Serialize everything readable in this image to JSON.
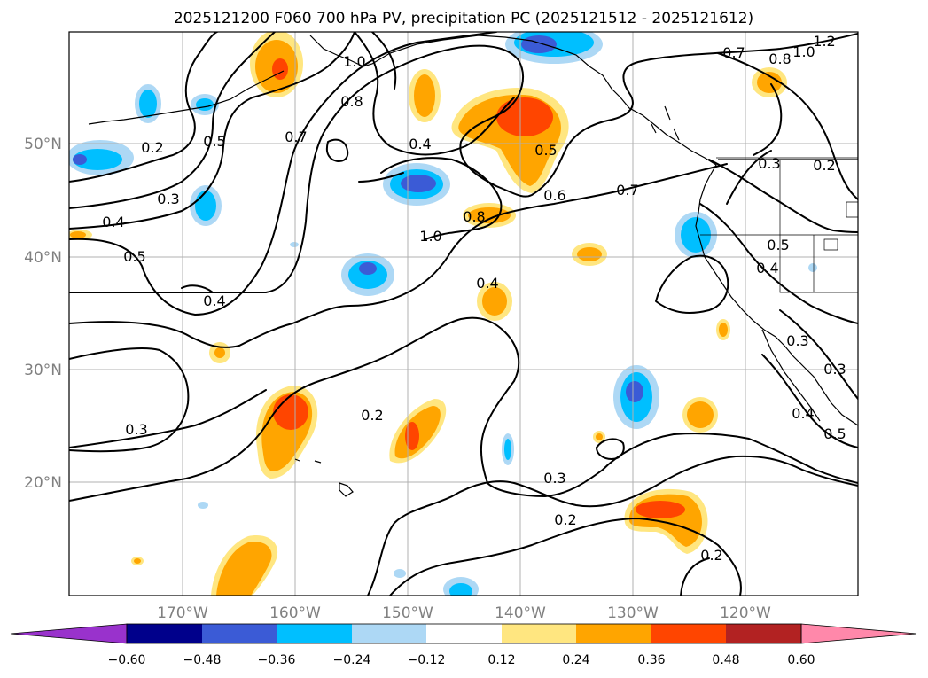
{
  "title": "2025121200 F060 700 hPa PV, precipitation PC (2025121512 - 2025121612)",
  "lon_labels": [
    "170°W",
    "160°W",
    "150°W",
    "140°W",
    "130°W",
    "120°W"
  ],
  "lat_labels": [
    "50°N",
    "40°N",
    "30°N",
    "20°N"
  ],
  "colorbar": {
    "ticks": [
      "−0.60",
      "−0.48",
      "−0.36",
      "−0.24",
      "−0.12",
      "0.12",
      "0.24",
      "0.36",
      "0.48",
      "0.60"
    ],
    "colors": [
      "#9932cc",
      "#00008b",
      "#3b5bd6",
      "#00bfff",
      "#add8f5",
      "#ffffff",
      "#ffe680",
      "#ffa500",
      "#ff4500",
      "#b22222",
      "#ff88aa"
    ]
  },
  "contour_labels": [
    "0.2",
    "0.3",
    "0.4",
    "0.5",
    "0.5",
    "0.7",
    "0.8",
    "1.0",
    "0.4",
    "0.5",
    "0.6",
    "0.7",
    "0.8",
    "1.0",
    "1.2",
    "1.0",
    "0.8",
    "0.7",
    "0.3",
    "0.2",
    "0.5",
    "0.4",
    "0.3",
    "0.3",
    "0.4",
    "0.5",
    "0.4",
    "0.4",
    "0.3",
    "0.2",
    "0.3",
    "0.2",
    "0.2"
  ]
}
